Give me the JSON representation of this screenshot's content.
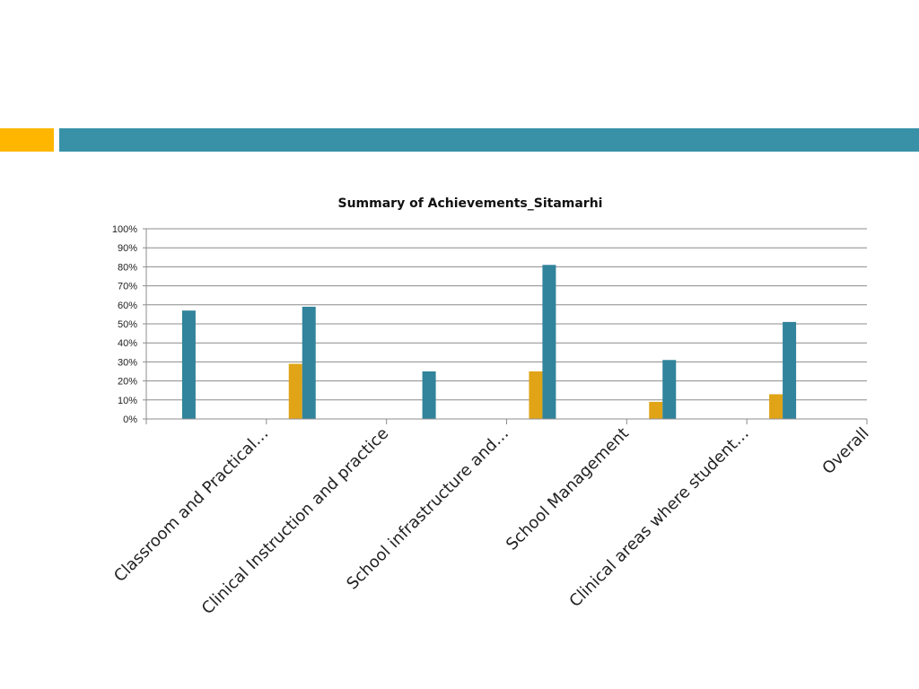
{
  "colors": {
    "accent_gold": "#ffb600",
    "accent_teal": "#3891a7",
    "series_a": "#e0a416",
    "series_b": "#31849b",
    "grid": "#8c8c8c"
  },
  "chart_data": {
    "type": "bar",
    "title": "Summary of Achievements_Sitamarhi",
    "xlabel": "",
    "ylabel": "",
    "ylim": [
      0,
      100
    ],
    "y_ticks": [
      "0%",
      "10%",
      "20%",
      "30%",
      "40%",
      "50%",
      "60%",
      "70%",
      "80%",
      "90%",
      "100%"
    ],
    "categories": [
      "Classroom and Practical…",
      "Clinical Instruction and practice",
      "School infrastructure and…",
      "School Management",
      "Clinical areas where student…",
      "Overall"
    ],
    "series": [
      {
        "values": [
          0,
          29,
          0,
          25,
          9,
          13
        ]
      },
      {
        "values": [
          57,
          59,
          25,
          81,
          31,
          51
        ]
      }
    ],
    "grid": true,
    "legend": "none"
  }
}
